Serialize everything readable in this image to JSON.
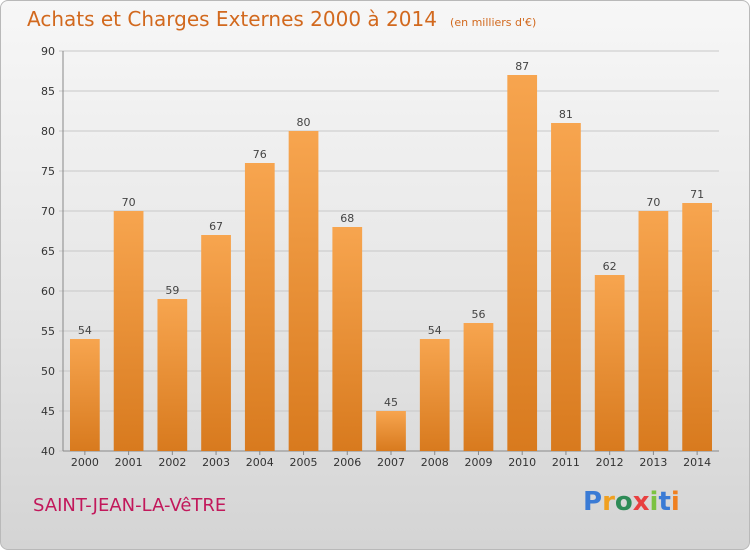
{
  "header": {
    "title": "Achats et Charges Externes 2000 à 2014",
    "subtitle": "(en milliers d'€)"
  },
  "footer": {
    "place": "SAINT-JEAN-LA-VêTRE",
    "logo": "Proxiti"
  },
  "colors": {
    "bar_top": "#f7a54f",
    "bar_bottom": "#d87a1e",
    "title": "#d2691e",
    "place": "#c2185b",
    "grid": "#c8c8c8"
  },
  "chart_data": {
    "type": "bar",
    "title": "Achats et Charges Externes 2000 à 2014",
    "subtitle": "(en milliers d'€)",
    "categories": [
      "2000",
      "2001",
      "2002",
      "2003",
      "2004",
      "2005",
      "2006",
      "2007",
      "2008",
      "2009",
      "2010",
      "2011",
      "2012",
      "2013",
      "2014"
    ],
    "values": [
      54,
      70,
      59,
      67,
      76,
      80,
      68,
      45,
      54,
      56,
      87,
      81,
      62,
      70,
      71
    ],
    "ylim": [
      40,
      90
    ],
    "yticks": [
      40,
      45,
      50,
      55,
      60,
      65,
      70,
      75,
      80,
      85,
      90
    ],
    "grid": true
  }
}
